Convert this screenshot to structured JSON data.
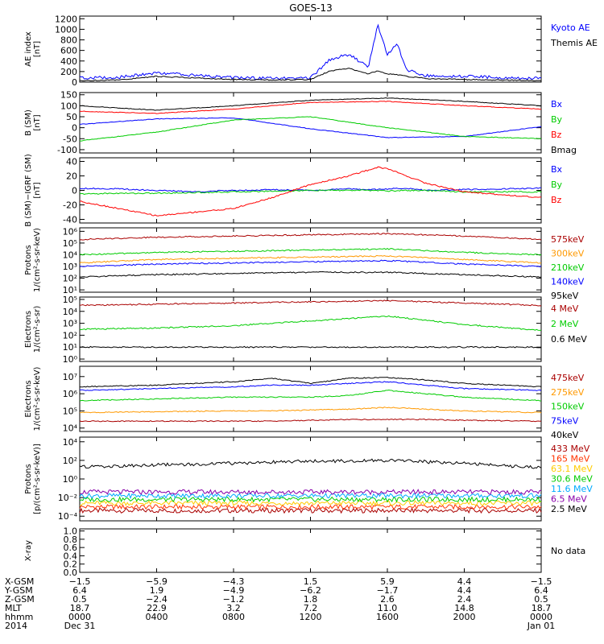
{
  "title": "GOES-13",
  "panels": [
    {
      "id": "ae",
      "ylabel": [
        "AE index",
        "[nT]"
      ],
      "yticks": [
        "1200",
        "1000",
        "800",
        "600",
        "400",
        "200",
        "0"
      ],
      "ytick_values": [
        1200,
        1000,
        800,
        600,
        400,
        200,
        0
      ],
      "ylim": [
        0,
        1250
      ],
      "scale": "linear",
      "legend": [
        {
          "label": "Kyoto AE",
          "color": "#0000ff"
        },
        {
          "label": "Themis AE",
          "color": "#000000"
        }
      ]
    },
    {
      "id": "bsm",
      "ylabel": [
        "B (SM)",
        "[nT]"
      ],
      "yticks": [
        "150",
        "100",
        "50",
        "0",
        "-50",
        "-100"
      ],
      "ytick_values": [
        150,
        100,
        50,
        0,
        -50,
        -100
      ],
      "ylim": [
        -115,
        160
      ],
      "scale": "linear",
      "legend": [
        {
          "label": "Bx",
          "color": "#0000ff"
        },
        {
          "label": "By",
          "color": "#00cc00"
        },
        {
          "label": "Bz",
          "color": "#ff0000"
        },
        {
          "label": "Bmag",
          "color": "#000000"
        }
      ]
    },
    {
      "id": "bigrf",
      "ylabel": [
        "B (SM)−IGRF (SM)",
        "[nT]"
      ],
      "yticks": [
        "40",
        "20",
        "0",
        "-20",
        "-40"
      ],
      "ytick_values": [
        40,
        20,
        0,
        -20,
        -40
      ],
      "ylim": [
        -45,
        45
      ],
      "scale": "linear",
      "legend": [
        {
          "label": "Bx",
          "color": "#0000ff"
        },
        {
          "label": "By",
          "color": "#00cc00"
        },
        {
          "label": "Bz",
          "color": "#ff0000"
        }
      ]
    },
    {
      "id": "protons1",
      "ylabel": [
        "Protons",
        "1/(cm²-s-sr-keV)"
      ],
      "yticks": [
        "10⁶",
        "10⁵",
        "10⁴",
        "10³",
        "10²",
        "10¹"
      ],
      "ytick_values": [
        6,
        5,
        4,
        3,
        2,
        1
      ],
      "ylim": [
        0.8,
        6.3
      ],
      "scale": "log",
      "legend": [
        {
          "label": "575keV",
          "color": "#aa0000"
        },
        {
          "label": "300keV",
          "color": "#ff9900"
        },
        {
          "label": "210keV",
          "color": "#00cc00"
        },
        {
          "label": "140keV",
          "color": "#0000ff"
        },
        {
          "label": "95keV",
          "color": "#000000"
        }
      ]
    },
    {
      "id": "electrons1",
      "ylabel": [
        "Electrons",
        "1/(cm²-s-sr)"
      ],
      "yticks": [
        "10⁵",
        "10⁴",
        "10³",
        "10²",
        "10¹",
        "10⁰"
      ],
      "ytick_values": [
        5,
        4,
        3,
        2,
        1,
        0
      ],
      "ylim": [
        -0.2,
        5.2
      ],
      "scale": "log",
      "legend": [
        {
          "label": "4 MeV",
          "color": "#aa0000"
        },
        {
          "label": "2 MeV",
          "color": "#00cc00"
        },
        {
          "label": "0.6 MeV",
          "color": "#000000"
        }
      ]
    },
    {
      "id": "electrons2",
      "ylabel": [
        "Electrons",
        "1/(cm²-s-sr-keV)"
      ],
      "yticks": [
        "10⁷",
        "10⁶",
        "10⁵",
        "10⁴"
      ],
      "ytick_values": [
        7,
        6,
        5,
        4
      ],
      "ylim": [
        3.8,
        7.6
      ],
      "scale": "log",
      "legend": [
        {
          "label": "475keV",
          "color": "#aa0000"
        },
        {
          "label": "275keV",
          "color": "#ff9900"
        },
        {
          "label": "150keV",
          "color": "#00cc00"
        },
        {
          "label": "75keV",
          "color": "#0000ff"
        },
        {
          "label": "40keV",
          "color": "#000000"
        }
      ]
    },
    {
      "id": "protons2",
      "ylabel": [
        "Protons",
        "[p/(cm²-s-sr-keV)]"
      ],
      "yticks": [
        "10⁴",
        "10²",
        "10⁰",
        "10⁻²",
        "10⁻⁴"
      ],
      "ytick_values": [
        4,
        2,
        0,
        -2,
        -4
      ],
      "ylim": [
        -4.5,
        4.5
      ],
      "scale": "log",
      "legend": [
        {
          "label": "433 MeV",
          "color": "#aa0000"
        },
        {
          "label": "165 MeV",
          "color": "#ff3300"
        },
        {
          "label": "63.1 MeV",
          "color": "#ffcc00"
        },
        {
          "label": "30.6 MeV",
          "color": "#00cc00"
        },
        {
          "label": "11.6 MeV",
          "color": "#00aaff"
        },
        {
          "label": "6.5 MeV",
          "color": "#8800aa"
        },
        {
          "label": "2.5 MeV",
          "color": "#000000"
        }
      ]
    },
    {
      "id": "xray",
      "ylabel": [
        "X-ray"
      ],
      "yticks": [
        "1.0",
        "0.8",
        "0.6",
        "0.4",
        "0.2",
        "0.0"
      ],
      "ytick_values": [
        1.0,
        0.8,
        0.6,
        0.4,
        0.2,
        0.0
      ],
      "ylim": [
        0,
        1.05
      ],
      "scale": "linear",
      "legend": [
        {
          "label": "No data",
          "color": "#000000"
        }
      ]
    }
  ],
  "xaxis": {
    "row_labels": [
      "X-GSM",
      "Y-GSM",
      "Z-GSM",
      "MLT",
      "hhmm",
      "2014"
    ],
    "columns": [
      {
        "hours": 0,
        "values": [
          "−1.5",
          "6.4",
          "0.5",
          "18.7",
          "0000",
          "Dec 31"
        ]
      },
      {
        "hours": 4,
        "values": [
          "−5.9",
          "1.9",
          "−2.4",
          "22.9",
          "0400",
          ""
        ]
      },
      {
        "hours": 8,
        "values": [
          "−4.3",
          "−4.9",
          "−1.2",
          "3.2",
          "0800",
          ""
        ]
      },
      {
        "hours": 12,
        "values": [
          "1.5",
          "−6.2",
          "1.8",
          "7.2",
          "1200",
          ""
        ]
      },
      {
        "hours": 16,
        "values": [
          "5.9",
          "−1.7",
          "2.6",
          "11.0",
          "1600",
          ""
        ]
      },
      {
        "hours": 20,
        "values": [
          "4.4",
          "4.4",
          "2.4",
          "14.8",
          "2000",
          ""
        ]
      },
      {
        "hours": 24,
        "values": [
          "−1.5",
          "6.4",
          "0.5",
          "18.7",
          "0000",
          "Jan 01"
        ]
      }
    ]
  },
  "chart_data": [
    {
      "type": "line",
      "panel": "ae",
      "xlabel": "hhmm",
      "ylabel": "AE index [nT]",
      "x": [
        0,
        2,
        4,
        6,
        8,
        10,
        12,
        13,
        14,
        15,
        15.5,
        16,
        16.5,
        17,
        18,
        20,
        22,
        24
      ],
      "series": [
        {
          "name": "Kyoto AE",
          "values": [
            50,
            60,
            150,
            100,
            60,
            40,
            50,
            400,
            500,
            250,
            1050,
            500,
            700,
            200,
            100,
            80,
            60,
            40
          ]
        },
        {
          "name": "Themis AE",
          "values": [
            20,
            30,
            100,
            70,
            40,
            30,
            40,
            200,
            250,
            150,
            200,
            150,
            130,
            100,
            60,
            40,
            30,
            20
          ]
        }
      ]
    },
    {
      "type": "line",
      "panel": "bsm",
      "xlabel": "hhmm",
      "ylabel": "B (SM) [nT]",
      "x": [
        0,
        4,
        8,
        12,
        16,
        20,
        24
      ],
      "series": [
        {
          "name": "Bx",
          "values": [
            15,
            40,
            45,
            -5,
            -45,
            -40,
            5
          ]
        },
        {
          "name": "By",
          "values": [
            -60,
            -20,
            35,
            50,
            0,
            -40,
            -50
          ]
        },
        {
          "name": "Bz",
          "values": [
            75,
            65,
            85,
            115,
            120,
            100,
            85
          ]
        },
        {
          "name": "Bmag",
          "values": [
            100,
            80,
            100,
            125,
            135,
            120,
            100
          ]
        }
      ]
    },
    {
      "type": "line",
      "panel": "bigrf",
      "xlabel": "hhmm",
      "ylabel": "B (SM)-IGRF (SM) [nT]",
      "x": [
        0,
        2,
        4,
        6,
        8,
        10,
        12,
        14,
        15.5,
        16,
        17,
        18,
        20,
        24
      ],
      "series": [
        {
          "name": "Bx",
          "values": [
            3,
            2,
            0,
            -2,
            0,
            1,
            0,
            2,
            1,
            2,
            3,
            0,
            1,
            3
          ]
        },
        {
          "name": "By",
          "values": [
            -5,
            -4,
            -4,
            -3,
            -2,
            -1,
            0,
            0,
            0,
            -1,
            0,
            0,
            -2,
            -2
          ]
        },
        {
          "name": "Bz",
          "values": [
            -15,
            -25,
            -35,
            -30,
            -25,
            -10,
            8,
            20,
            32,
            30,
            20,
            10,
            -2,
            -10
          ]
        }
      ]
    },
    {
      "type": "line",
      "panel": "protons1",
      "xlabel": "hhmm",
      "ylabel": "Protons 1/(cm2-s-sr-keV)",
      "yscale": "log",
      "x": [
        0,
        4,
        8,
        12,
        16,
        20,
        24
      ],
      "series": [
        {
          "name": "575keV",
          "values": [
            5.3,
            5.5,
            5.6,
            5.7,
            5.8,
            5.6,
            5.3
          ]
        },
        {
          "name": "300keV",
          "values": [
            3.3,
            3.6,
            3.7,
            3.8,
            3.9,
            3.6,
            3.3
          ]
        },
        {
          "name": "210keV",
          "values": [
            4.0,
            4.2,
            4.3,
            4.4,
            4.5,
            4.2,
            4.0
          ]
        },
        {
          "name": "140keV",
          "values": [
            3.0,
            3.2,
            3.3,
            3.4,
            3.5,
            3.2,
            3.0
          ]
        },
        {
          "name": "95keV",
          "values": [
            2.1,
            2.3,
            2.4,
            2.5,
            2.5,
            2.3,
            2.1
          ]
        }
      ]
    },
    {
      "type": "line",
      "panel": "electrons1",
      "xlabel": "hhmm",
      "ylabel": "Electrons 1/(cm2-s-sr)",
      "yscale": "log",
      "x": [
        0,
        4,
        8,
        12,
        16,
        20,
        24
      ],
      "series": [
        {
          "name": "4 MeV",
          "values": [
            4.5,
            4.6,
            4.7,
            4.8,
            4.9,
            4.7,
            4.5
          ]
        },
        {
          "name": "2 MeV",
          "values": [
            2.5,
            2.6,
            2.8,
            3.2,
            3.6,
            2.9,
            2.4
          ]
        },
        {
          "name": "0.6 MeV",
          "values": [
            1.0,
            1.0,
            1.0,
            1.0,
            1.0,
            1.0,
            1.0
          ]
        }
      ]
    },
    {
      "type": "line",
      "panel": "electrons2",
      "xlabel": "hhmm",
      "ylabel": "Electrons 1/(cm2-s-sr-keV)",
      "yscale": "log",
      "x": [
        0,
        4,
        8,
        10,
        12,
        14,
        16,
        18,
        20,
        24
      ],
      "series": [
        {
          "name": "475keV",
          "values": [
            4.4,
            4.4,
            4.4,
            4.4,
            4.45,
            4.5,
            4.5,
            4.5,
            4.45,
            4.4
          ]
        },
        {
          "name": "275keV",
          "values": [
            4.9,
            4.95,
            5.0,
            5.0,
            5.05,
            5.1,
            5.2,
            5.1,
            5.0,
            4.9
          ]
        },
        {
          "name": "150keV",
          "values": [
            5.6,
            5.7,
            5.8,
            5.8,
            5.8,
            5.9,
            6.2,
            6.0,
            5.8,
            5.6
          ]
        },
        {
          "name": "75keV",
          "values": [
            6.2,
            6.3,
            6.4,
            6.5,
            6.5,
            6.6,
            6.7,
            6.5,
            6.3,
            6.2
          ]
        },
        {
          "name": "40keV",
          "values": [
            6.4,
            6.5,
            6.7,
            6.9,
            6.6,
            6.9,
            6.95,
            6.8,
            6.6,
            6.4
          ]
        }
      ]
    },
    {
      "type": "line",
      "panel": "protons2",
      "xlabel": "hhmm",
      "ylabel": "Protons [p/(cm2-s-sr-keV)]",
      "yscale": "log",
      "x": [
        0,
        4,
        8,
        12,
        16,
        20,
        24
      ],
      "series": [
        {
          "name": "433 MeV",
          "values": [
            -3.4,
            -3.4,
            -3.4,
            -3.4,
            -3.4,
            -3.4,
            -3.4
          ]
        },
        {
          "name": "165 MeV",
          "values": [
            -3.0,
            -3.0,
            -3.0,
            -3.0,
            -3.0,
            -3.0,
            -3.0
          ]
        },
        {
          "name": "63.1 MeV",
          "values": [
            -2.6,
            -2.6,
            -2.6,
            -2.6,
            -2.6,
            -2.6,
            -2.6
          ]
        },
        {
          "name": "30.6 MeV",
          "values": [
            -2.2,
            -2.2,
            -2.2,
            -2.2,
            -2.2,
            -2.2,
            -2.2
          ]
        },
        {
          "name": "11.6 MeV",
          "values": [
            -1.8,
            -1.8,
            -1.8,
            -1.8,
            -1.8,
            -1.8,
            -1.8
          ]
        },
        {
          "name": "6.5 MeV",
          "values": [
            -1.4,
            -1.4,
            -1.4,
            -1.4,
            -1.4,
            -1.4,
            -1.4
          ]
        },
        {
          "name": "2.5 MeV",
          "values": [
            1.3,
            1.5,
            1.7,
            1.9,
            2.0,
            1.7,
            1.2
          ]
        }
      ]
    },
    {
      "type": "line",
      "panel": "xray",
      "xlabel": "hhmm",
      "ylabel": "X-ray",
      "series": []
    }
  ]
}
